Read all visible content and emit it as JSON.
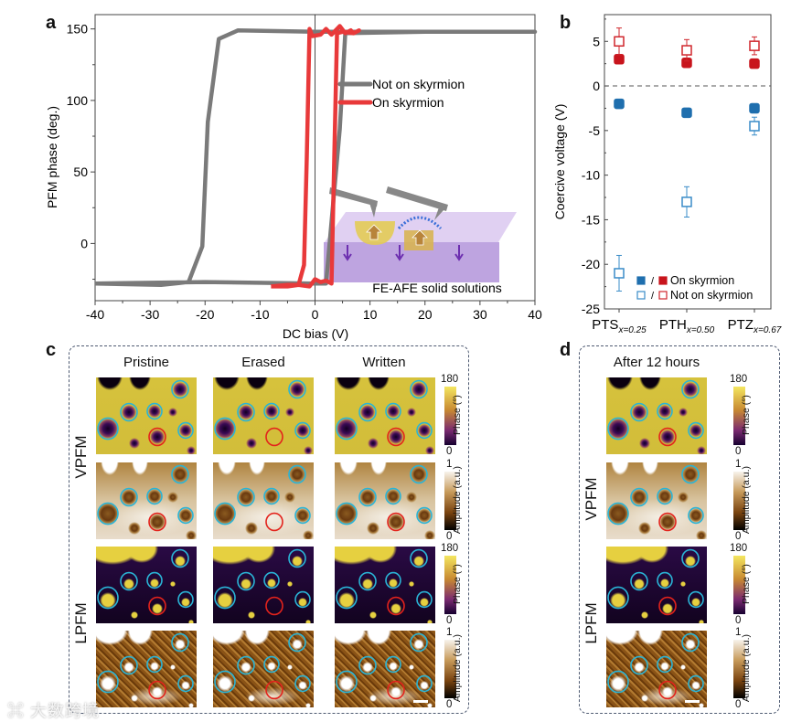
{
  "panel_labels": {
    "a": "a",
    "b": "b",
    "c": "c",
    "d": "d"
  },
  "chart_data": [
    {
      "type": "line",
      "title": "",
      "xlabel": "DC bias (V)",
      "ylabel": "PFM phase (deg.)",
      "xlim": [
        -40,
        40
      ],
      "ylim": [
        -40,
        160
      ],
      "xticks": [
        "-40",
        "-30",
        "-20",
        "-10",
        "0",
        "10",
        "20",
        "30",
        "40"
      ],
      "yticks": [
        "0",
        "50",
        "100",
        "150"
      ],
      "legend_position": "top-right",
      "series": [
        {
          "name": "Not on skyrmion",
          "color": "#7a7a7a",
          "x": [
            -40,
            -28,
            -23,
            -20.5,
            -19.5,
            -17.5,
            -14,
            0,
            20,
            40,
            20,
            5.5,
            4.5,
            2,
            0,
            -20,
            -40
          ],
          "y": [
            -28,
            -29,
            -27,
            -2,
            85,
            143,
            149,
            148,
            148,
            148,
            148,
            147,
            80,
            -28,
            -28,
            -27,
            -28
          ]
        },
        {
          "name": "On skyrmion",
          "color": "#e8393a",
          "x": [
            -8,
            -5,
            -3,
            -2,
            -1.5,
            -1,
            -0.5,
            1,
            2,
            3,
            4.5,
            5.5,
            6.5,
            7,
            8,
            7,
            5,
            4,
            3.5,
            3,
            2.5,
            2,
            1,
            0,
            -1,
            -3,
            -5,
            -8
          ],
          "y": [
            -30,
            -30,
            -29,
            -15,
            60,
            150,
            145,
            146,
            150,
            146,
            152,
            147,
            149,
            147,
            149,
            147,
            148,
            147,
            60,
            -28,
            -27,
            -26,
            -27,
            -25,
            -30,
            -29,
            -29,
            -30
          ]
        }
      ],
      "inset_caption": "FE-AFE solid solutions"
    },
    {
      "type": "scatter",
      "xlabel": "",
      "ylabel": "Coercive voltage (V)",
      "ylim": [
        -25,
        8
      ],
      "yticks": [
        "5",
        "0",
        "-5",
        "-10",
        "-15",
        "-20",
        "-25"
      ],
      "reference_line": 0,
      "categories": [
        {
          "name": "PTS",
          "sub": "x=0.25"
        },
        {
          "name": "PTH",
          "sub": "x=0.50"
        },
        {
          "name": "PTZ",
          "sub": "x=0.67"
        }
      ],
      "series": [
        {
          "name": "On skyrmion (positive)",
          "color": "#c8141c",
          "fill": true,
          "values": [
            3.0,
            2.6,
            2.5
          ],
          "errors": [
            0.3,
            0.3,
            0.3
          ]
        },
        {
          "name": "On skyrmion (negative)",
          "color": "#1f6fae",
          "fill": true,
          "values": [
            -2.0,
            -3.0,
            -2.5
          ],
          "errors": [
            0.3,
            0.5,
            0.4
          ]
        },
        {
          "name": "Not on skyrmion (positive)",
          "color": "#d0262c",
          "fill": false,
          "values": [
            5.0,
            4.0,
            4.5
          ],
          "errors": [
            1.5,
            1.2,
            1.0
          ]
        },
        {
          "name": "Not on skyrmion (negative)",
          "color": "#3a8cc8",
          "fill": false,
          "values": [
            -21.0,
            -13.0,
            -4.5
          ],
          "errors": [
            2.0,
            1.7,
            1.0
          ]
        }
      ],
      "legend": [
        {
          "sep": "/",
          "label": "On skyrmion"
        },
        {
          "sep": "/",
          "label": "Not on skyrmion"
        }
      ],
      "legend_position": "bottom-right"
    }
  ],
  "panel_c": {
    "columns": [
      "Pristine",
      "Erased",
      "Written"
    ],
    "rows": [
      "VPFM",
      "LPFM"
    ]
  },
  "panel_d": {
    "title": "After 12 hours",
    "rows": [
      "VPFM",
      "LPFM"
    ]
  },
  "colorbars": {
    "phase": {
      "label": "Phase (°)",
      "max": "180",
      "min": "0"
    },
    "amplitude": {
      "label": "Amplitude (a.u.)",
      "max": "1",
      "min": "0"
    }
  },
  "watermark": "大数跨境"
}
